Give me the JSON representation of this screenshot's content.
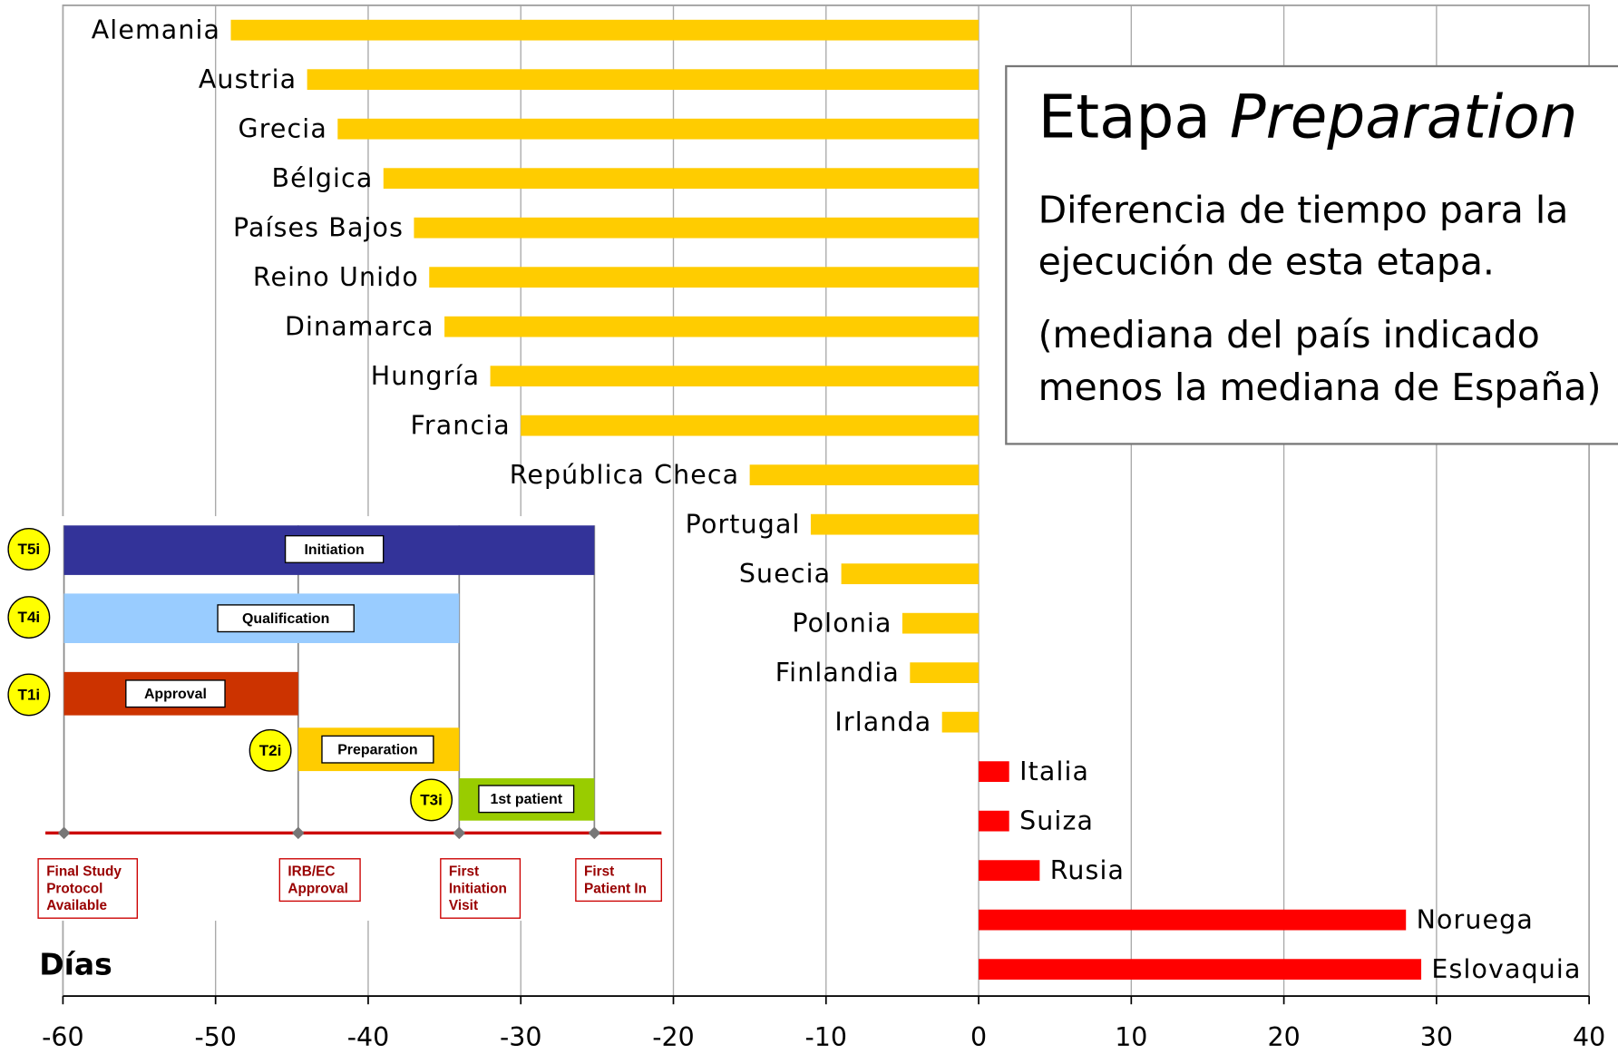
{
  "chart_data": {
    "type": "hbar",
    "categories": [
      "Alemania",
      "Austria",
      "Grecia",
      "Bélgica",
      "Países Bajos",
      "Reino Unido",
      "Dinamarca",
      "Hungría",
      "Francia",
      "República Checa",
      "Portugal",
      "Suecia",
      "Polonia",
      "Finlandia",
      "Irlanda",
      "Italia",
      "Suiza",
      "Rusia",
      "Noruega",
      "Eslovaquia"
    ],
    "values": [
      -49,
      -44,
      -42,
      -39,
      -37,
      -36,
      -35,
      -32,
      -30,
      -15,
      -11,
      -9,
      -5,
      -4.5,
      -2.4,
      2,
      2,
      4,
      28,
      29
    ],
    "colors": {
      "negative": "#ffcc00",
      "positive": "#ff0000"
    },
    "xlabel": "Días",
    "xlim": [
      -60,
      40
    ],
    "xticks": [
      -60,
      -50,
      -40,
      -30,
      -20,
      -10,
      0,
      10,
      20,
      30,
      40
    ],
    "grid": true
  },
  "annotation": {
    "title_plain": "Etapa",
    "title_italic": "Preparation",
    "lines": [
      "Diferencia de tiempo para la",
      "ejecución de esta etapa.",
      "(mediana del país indicado",
      "menos la mediana de España)"
    ]
  },
  "inset": {
    "phases": [
      {
        "code": "T5i",
        "label": "Initiation"
      },
      {
        "code": "T4i",
        "label": "Qualification"
      },
      {
        "code": "T1i",
        "label": "Approval"
      },
      {
        "code": "T2i",
        "label": "Preparation"
      },
      {
        "code": "T3i",
        "label": "1st patient"
      }
    ],
    "milestones": [
      [
        "Final Study",
        "Protocol",
        "Available"
      ],
      [
        "IRB/EC",
        "Approval"
      ],
      [
        "First",
        "Initiation",
        "Visit"
      ],
      [
        "First",
        "Patient In"
      ]
    ]
  }
}
